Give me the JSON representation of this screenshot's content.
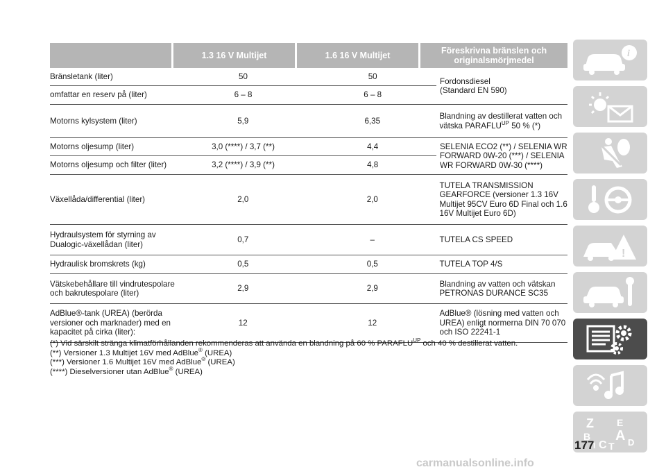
{
  "table": {
    "headers": [
      "",
      "1.3 16 V Multijet",
      "1.6 16 V Multijet",
      "Föreskrivna bränslen och originalsmörjmedel"
    ],
    "rows": {
      "fuel_tank": {
        "label": "Bränsletank (liter)",
        "v13": "50",
        "v16": "50"
      },
      "reserve": {
        "label": "omfattar en reserv på (liter)",
        "v13": "6 – 8",
        "v16": "6 – 8"
      },
      "fuel_spec": {
        "line1": "Fordonsdiesel",
        "line2": "(Standard EN 590)"
      },
      "cooling": {
        "label": "Motorns kylsystem (liter)",
        "v13": "5,9",
        "v16": "6,35",
        "spec_a": "Blandning av destillerat vatten och",
        "spec_b": "vätska PARAFLU",
        "spec_sup": "UP",
        "spec_c": "50 % (*)"
      },
      "oil_sump": {
        "label": "Motorns oljesump (liter)",
        "v13": "3,0 (****) / 3,7 (**)",
        "v16": "4,4"
      },
      "oil_sump_filter": {
        "label": "Motorns oljesump och filter (liter)",
        "v13": "3,2 (****) / 3,9 (**)",
        "v16": "4,8"
      },
      "oil_spec": {
        "line1": "SELENIA ECO2 (**) / SELENIA WR",
        "line2": "FORWARD 0W-20 (***) / SELENIA",
        "line3": "WR FORWARD 0W-30 (****)"
      },
      "gearbox": {
        "label": "Växellåda/differential (liter)",
        "v13": "2,0",
        "v16": "2,0",
        "spec1": "TUTELA TRANSMISSION",
        "spec2": "GEARFORCE (versioner 1.3 16V",
        "spec3": "Multijet 95CV Euro 6D Final och 1.6",
        "spec4": "16V Multijet Euro 6D)"
      },
      "hydraulic_steering": {
        "label1": "Hydraulsystem för styrning av",
        "label2": "Dualogic-växellådan (liter)",
        "v13": "0,7",
        "v16": "–",
        "spec": "TUTELA CS SPEED"
      },
      "brakes": {
        "label": "Hydraulisk bromskrets (kg)",
        "v13": "0,5",
        "v16": "0,5",
        "spec": "TUTELA TOP 4/S"
      },
      "washer": {
        "label1": "Vätskebehållare till vindrutespolare",
        "label2": "och bakrutespolare (liter)",
        "v13": "2,9",
        "v16": "2,9",
        "spec1": "Blandning av vatten och vätskan",
        "spec2": "PETRONAS DURANCE SC35"
      },
      "adblue": {
        "label1": "AdBlue®-tank (UREA) (berörda",
        "label2": "versioner och marknader) med en",
        "label3": "kapacitet på cirka (liter):",
        "v13": "12",
        "v16": "12",
        "spec1": "AdBlue® (lösning med vatten och",
        "spec2": "UREA) enligt normerna DIN 70 070",
        "spec3": "och ISO 22241-1"
      }
    }
  },
  "notes": {
    "n1_a": "(*) Vid särskilt stränga klimatförhållanden rekommenderas att använda en blandning på 60 % PARAFLU",
    "n1_sup": "UP",
    "n1_b": "och 40 % destillerat vatten.",
    "n2_a": "(**) Versioner 1.3 Multijet 16V med AdBlue",
    "n2_b": "(UREA)",
    "n3_a": "(***) Versioner 1.6 Multijet 16V med AdBlue",
    "n3_b": "(UREA)",
    "n4_a": "(****) Dieselversioner utan AdBlue",
    "n4_b": "(UREA)",
    "reg": "®"
  },
  "sidebar": {
    "tabs": [
      {
        "icon": "car-info-icon"
      },
      {
        "icon": "warning-lights-icon"
      },
      {
        "icon": "safety-airbag-icon"
      },
      {
        "icon": "starting-driving-icon"
      },
      {
        "icon": "emergency-icon"
      },
      {
        "icon": "maintenance-icon"
      },
      {
        "icon": "technical-data-icon",
        "active": true
      },
      {
        "icon": "multimedia-icon"
      },
      {
        "icon": "index-icon"
      }
    ],
    "index_letters": [
      "Z",
      "E",
      "B",
      "A",
      "D",
      "C",
      "T",
      "I"
    ]
  },
  "page_number": "177",
  "watermark": "carmanualsonline.info",
  "colors": {
    "header_bg": "#b5b5b5",
    "tab_bg": "#d3d3d3",
    "tab_active": "#4c4c4c"
  }
}
